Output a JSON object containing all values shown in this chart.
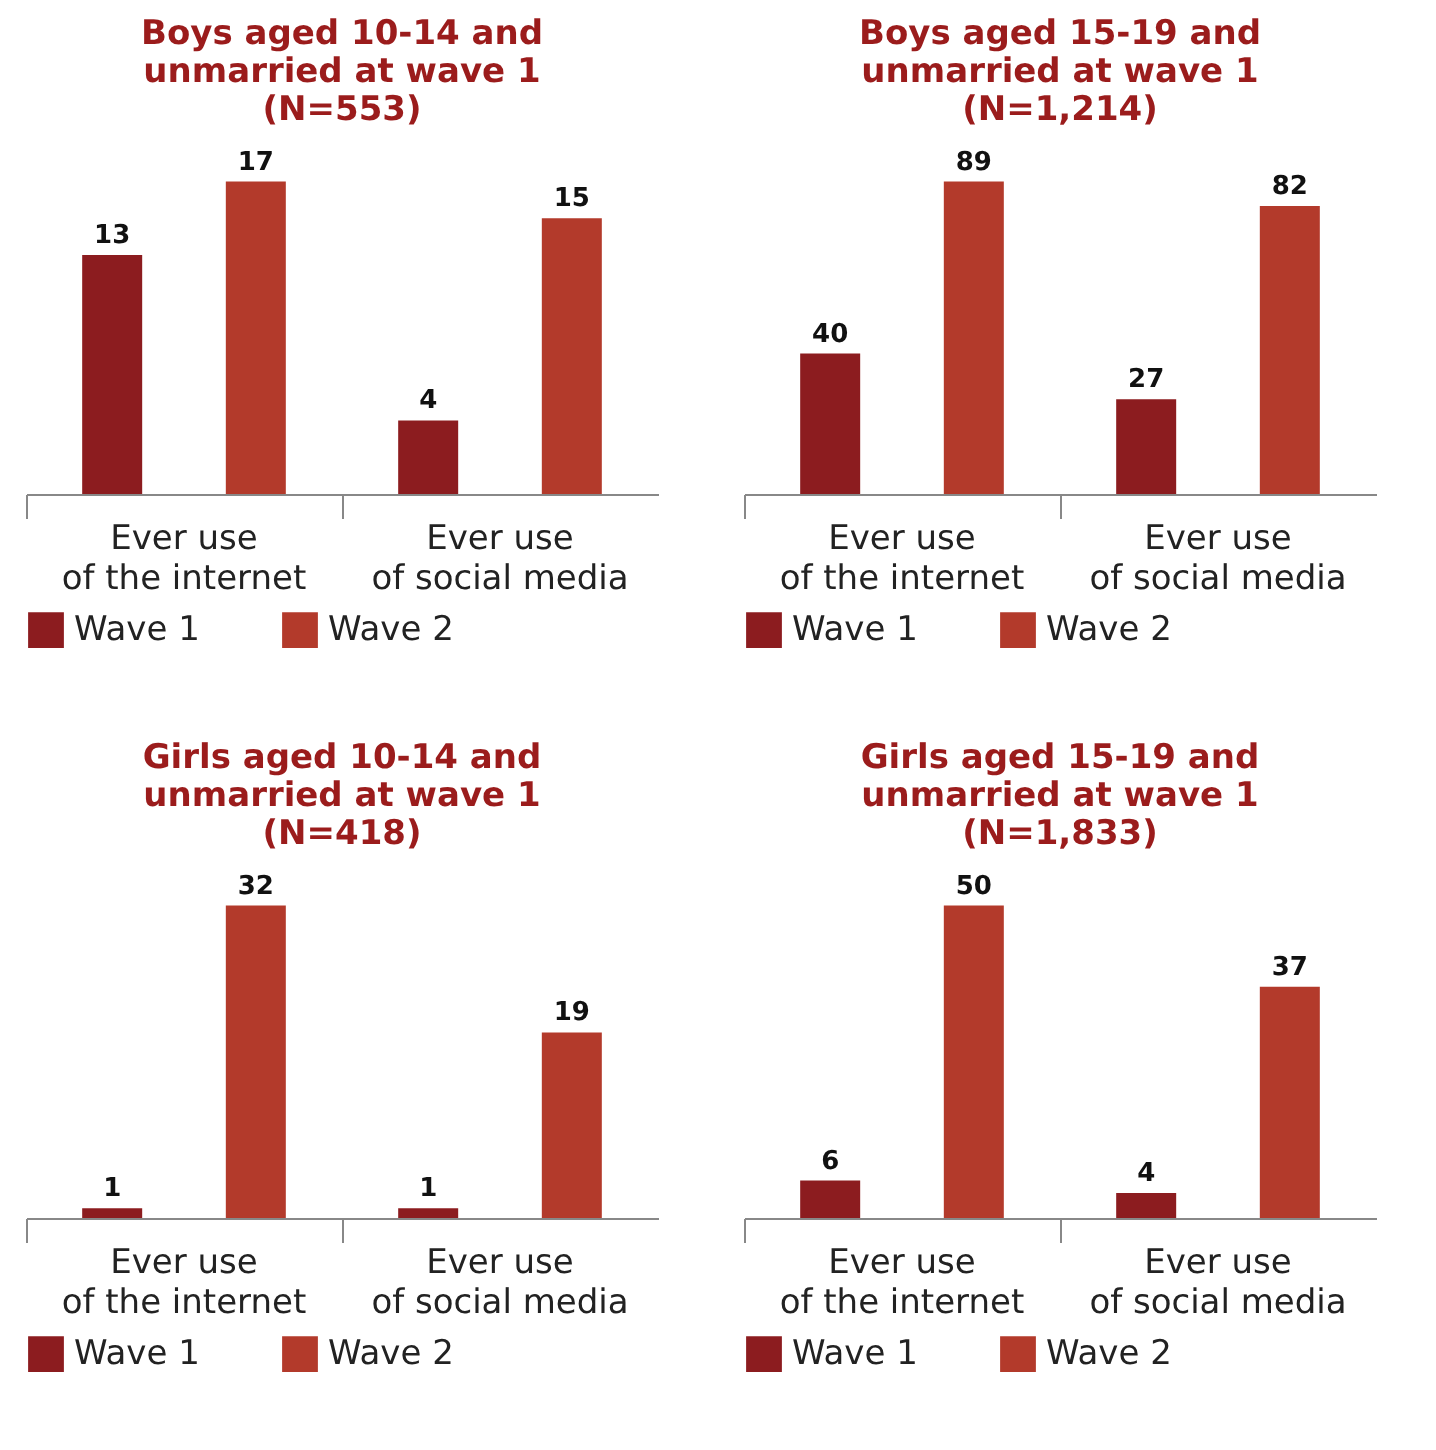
{
  "chart_data": [
    {
      "type": "bar",
      "title": "Boys aged 10-14 and unmarried at wave 1 (N=553)",
      "categories": [
        "Ever use of the internet",
        "Ever use of social media"
      ],
      "series": [
        {
          "name": "Wave 1",
          "color": "#8c1c1f",
          "values": [
            13,
            4
          ]
        },
        {
          "name": "Wave 2",
          "color": "#b33a2b",
          "values": [
            17,
            15
          ]
        }
      ],
      "data_labels": true,
      "legend": "bottom"
    },
    {
      "type": "bar",
      "title": "Boys aged 15-19 and unmarried at wave 1 (N=1,214)",
      "categories": [
        "Ever use of the internet",
        "Ever use of social media"
      ],
      "series": [
        {
          "name": "Wave 1",
          "color": "#8c1c1f",
          "values": [
            40,
            27
          ]
        },
        {
          "name": "Wave 2",
          "color": "#b33a2b",
          "values": [
            89,
            82
          ]
        }
      ],
      "data_labels": true,
      "legend": "bottom"
    },
    {
      "type": "bar",
      "title": "Girls aged 10-14 and unmarried at wave 1 (N=418)",
      "categories": [
        "Ever use of the internet",
        "Ever use of social media"
      ],
      "series": [
        {
          "name": "Wave 1",
          "color": "#8c1c1f",
          "values": [
            1,
            1
          ]
        },
        {
          "name": "Wave 2",
          "color": "#b33a2b",
          "values": [
            32,
            19
          ]
        }
      ],
      "data_labels": true,
      "legend": "bottom"
    },
    {
      "type": "bar",
      "title": "Girls aged 15-19 and unmarried at wave 1 (N=1,833)",
      "categories": [
        "Ever use of the internet",
        "Ever use of social media"
      ],
      "series": [
        {
          "name": "Wave 1",
          "color": "#8c1c1f",
          "values": [
            6,
            4
          ]
        },
        {
          "name": "Wave 2",
          "color": "#b33a2b",
          "values": [
            50,
            37
          ]
        }
      ],
      "data_labels": true,
      "legend": "bottom"
    }
  ]
}
